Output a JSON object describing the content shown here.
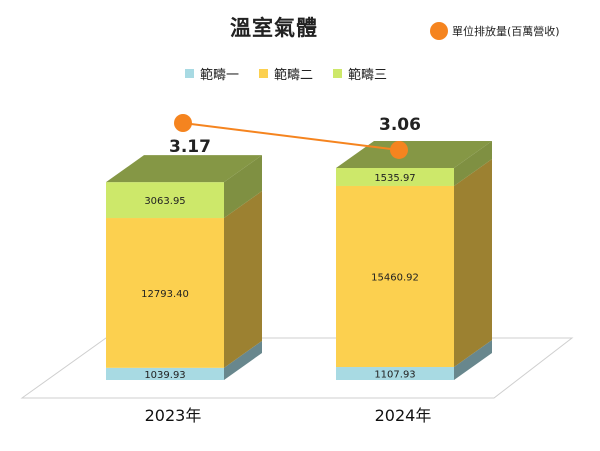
{
  "chart_data": {
    "type": "bar",
    "title": "溫室氣體",
    "categories": [
      "2023年",
      "2024年"
    ],
    "series": [
      {
        "name": "範疇一",
        "values": [
          1039.93,
          1107.93
        ],
        "color": "#a8dae3"
      },
      {
        "name": "範疇二",
        "values": [
          12793.4,
          15460.92
        ],
        "color": "#fcd04f"
      },
      {
        "name": "範疇三",
        "values": [
          3063.95,
          1535.97
        ],
        "color": "#cde86a"
      }
    ],
    "line_series": {
      "name": "單位排放量(百萬營收)",
      "values": [
        3.17,
        3.06
      ],
      "labels": [
        "3.17",
        "3.06"
      ],
      "color": "#f5841f"
    },
    "stacked": true,
    "three_d": true,
    "legend_position": "top"
  }
}
